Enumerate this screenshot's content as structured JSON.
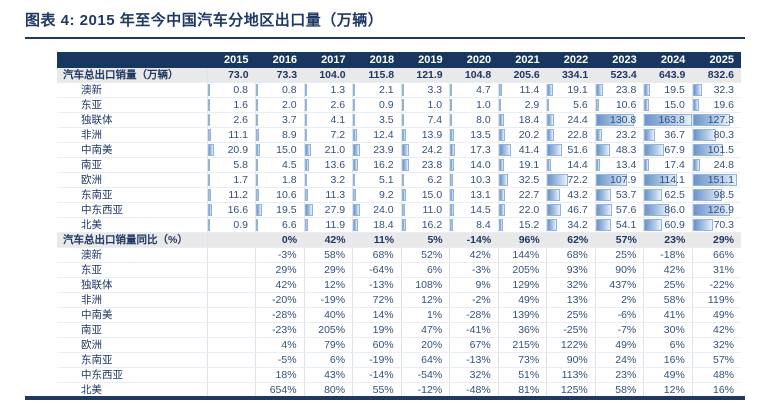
{
  "page": {
    "title": "图表 4: 2015 年至今中国汽车分地区出口量（万辆）"
  },
  "colors": {
    "accent_navy": "#1f3864",
    "header_bg": "#17375e",
    "header_text": "#ffffff",
    "total_row_bg": "#e9e9e9",
    "value_text": "#33517c",
    "bar_fill_start": "#6b94c8",
    "bar_fill_end": "#e9f1fa",
    "bar_border": "#95b3d7",
    "grid_line": "#dbe3f0"
  },
  "chart_data": {
    "type": "table",
    "title": "图表 4: 2015 年至今中国汽车分地区出口量（万辆）",
    "columns": [
      "2015",
      "2016",
      "2017",
      "2018",
      "2019",
      "2020",
      "2021",
      "2022",
      "2023",
      "2024",
      "2025"
    ],
    "sections": [
      {
        "label": "汽车总出口销量（万辆）",
        "value_format": "decimal1",
        "show_bars": true,
        "total": {
          "label": "汽车总出口销量（万辆）",
          "values": [
            73.0,
            73.3,
            104.0,
            115.8,
            121.9,
            104.8,
            205.6,
            334.1,
            523.4,
            643.9,
            832.6
          ]
        },
        "rows": [
          {
            "label": "澳新",
            "values": [
              0.8,
              0.8,
              1.3,
              2.1,
              3.3,
              4.7,
              11.4,
              19.1,
              23.8,
              19.5,
              32.3
            ]
          },
          {
            "label": "东亚",
            "values": [
              1.6,
              2.0,
              2.6,
              0.9,
              1.0,
              1.0,
              2.9,
              5.6,
              10.6,
              15.0,
              19.6
            ]
          },
          {
            "label": "独联体",
            "values": [
              2.6,
              3.7,
              4.1,
              3.5,
              7.4,
              8.0,
              18.4,
              24.4,
              130.8,
              163.8,
              127.3
            ]
          },
          {
            "label": "非洲",
            "values": [
              11.1,
              8.9,
              7.2,
              12.4,
              13.9,
              13.5,
              20.2,
              22.8,
              23.2,
              36.7,
              80.3
            ]
          },
          {
            "label": "中南美",
            "values": [
              20.9,
              15.0,
              21.0,
              23.9,
              24.2,
              17.3,
              41.4,
              51.6,
              48.3,
              67.9,
              101.5
            ]
          },
          {
            "label": "南亚",
            "values": [
              5.8,
              4.5,
              13.6,
              16.2,
              23.8,
              14.0,
              19.1,
              14.4,
              13.4,
              17.4,
              24.8
            ]
          },
          {
            "label": "欧洲",
            "values": [
              1.7,
              1.8,
              3.2,
              5.1,
              6.2,
              10.3,
              32.5,
              72.2,
              107.9,
              114.1,
              151.1
            ]
          },
          {
            "label": "东南亚",
            "values": [
              11.2,
              10.6,
              11.3,
              9.2,
              15.0,
              13.1,
              22.7,
              43.2,
              53.7,
              62.5,
              98.5
            ]
          },
          {
            "label": "中东西亚",
            "values": [
              16.6,
              19.5,
              27.9,
              24.0,
              11.0,
              14.5,
              22.0,
              46.7,
              57.6,
              86.0,
              126.9
            ]
          },
          {
            "label": "北美",
            "values": [
              0.9,
              6.6,
              11.9,
              18.4,
              16.2,
              8.4,
              15.2,
              34.2,
              54.1,
              60.9,
              70.3
            ]
          }
        ]
      },
      {
        "label": "汽车总出口销量同比（%）",
        "value_format": "percent",
        "show_bars": false,
        "total": {
          "label": "汽车总出口销量同比（%）",
          "values": [
            null,
            0,
            42,
            11,
            5,
            -14,
            96,
            62,
            57,
            23,
            29
          ]
        },
        "rows": [
          {
            "label": "澳新",
            "values": [
              null,
              -3,
              58,
              68,
              52,
              42,
              144,
              68,
              25,
              -18,
              66
            ]
          },
          {
            "label": "东亚",
            "values": [
              null,
              29,
              29,
              -64,
              6,
              -3,
              205,
              93,
              90,
              42,
              31
            ]
          },
          {
            "label": "独联体",
            "values": [
              null,
              42,
              12,
              -13,
              108,
              9,
              129,
              32,
              437,
              25,
              -22
            ]
          },
          {
            "label": "非洲",
            "values": [
              null,
              -20,
              -19,
              72,
              12,
              -2,
              49,
              13,
              2,
              58,
              119
            ]
          },
          {
            "label": "中南美",
            "values": [
              null,
              -28,
              40,
              14,
              1,
              -28,
              139,
              25,
              -6,
              41,
              49
            ]
          },
          {
            "label": "南亚",
            "values": [
              null,
              -23,
              205,
              19,
              47,
              -41,
              36,
              -25,
              -7,
              30,
              42
            ]
          },
          {
            "label": "欧洲",
            "values": [
              null,
              4,
              79,
              60,
              20,
              67,
              215,
              122,
              49,
              6,
              32
            ]
          },
          {
            "label": "东南亚",
            "values": [
              null,
              -5,
              6,
              -19,
              64,
              -13,
              73,
              90,
              24,
              16,
              57
            ]
          },
          {
            "label": "中东西亚",
            "values": [
              null,
              18,
              43,
              -14,
              -54,
              32,
              51,
              113,
              23,
              49,
              48
            ]
          },
          {
            "label": "北美",
            "values": [
              null,
              654,
              80,
              55,
              -12,
              -48,
              81,
              125,
              58,
              12,
              16
            ]
          }
        ]
      }
    ]
  }
}
